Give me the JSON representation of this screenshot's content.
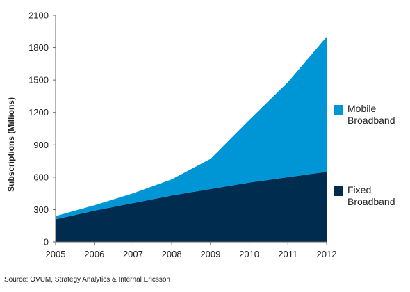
{
  "chart_data": {
    "type": "area",
    "stacked": true,
    "x": [
      2005,
      2006,
      2007,
      2008,
      2009,
      2010,
      2011,
      2012
    ],
    "xlim": [
      2005,
      2012
    ],
    "ylim": [
      0,
      2100
    ],
    "yticks": [
      0,
      300,
      600,
      900,
      1200,
      1500,
      1800,
      2100
    ],
    "ylabel": "Subscriptions (Millions)",
    "xlabel": "",
    "title": "",
    "grid": false,
    "legend_position": "right",
    "series": [
      {
        "name": "Fixed Broadband",
        "color": "#002d4f",
        "values": [
          210,
          290,
          360,
          430,
          490,
          550,
          600,
          650
        ]
      },
      {
        "name": "Mobile Broadband",
        "color": "#0096d6",
        "values": [
          30,
          50,
          90,
          150,
          280,
          580,
          880,
          1250
        ]
      }
    ]
  },
  "legend": {
    "mobile_line1": "Mobile",
    "mobile_line2": "Broadband",
    "fixed_line1": "Fixed",
    "fixed_line2": "Broadband"
  },
  "source": "Source: OVUM, Strategy Analytics & Internal Ericsson"
}
